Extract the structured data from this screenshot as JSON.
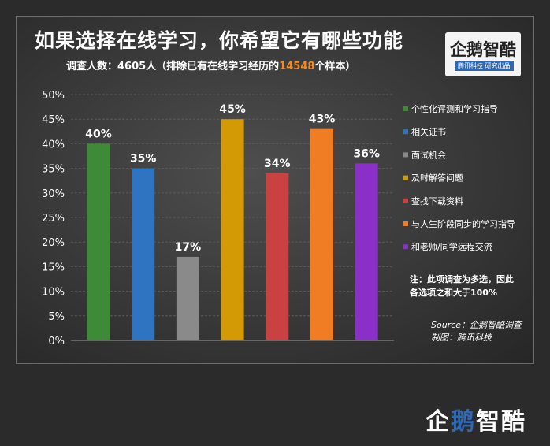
{
  "title": "如果选择在线学习，你希望它有哪些功能",
  "subtitle": {
    "prefix": "调查人数：4605人（排除已有在线学习经历的",
    "highlight": "14548",
    "suffix": "个样本）"
  },
  "brand": {
    "name": "企鹅智酷",
    "tag": "腾讯科技 研究出品"
  },
  "note": "注：此项调查为多选，因此各选项之和大于100%",
  "source": {
    "line1": "Source：企鹅智酷调查",
    "line2": "制图：腾讯科技"
  },
  "footer_logo": {
    "part1": "企",
    "part2": "鹅",
    "part3": "智酷"
  },
  "chart_data": {
    "type": "bar",
    "title": "如果选择在线学习，你希望它有哪些功能",
    "categories": [
      "个性化评测和学习指导",
      "相关证书",
      "面试机会",
      "及时解答问题",
      "查找下载资料",
      "与人生阶段同步的学习指导",
      "和老师/同学远程交流"
    ],
    "values": [
      40,
      35,
      17,
      45,
      34,
      43,
      36
    ],
    "value_labels": [
      "40%",
      "35%",
      "17%",
      "45%",
      "34%",
      "43%",
      "36%"
    ],
    "colors": [
      "#3d8b36",
      "#2f74c0",
      "#8a8a8a",
      "#d49a06",
      "#c94141",
      "#f07d23",
      "#8b2fc9"
    ],
    "ylim": [
      0,
      50
    ],
    "yticks": [
      "0%",
      "5%",
      "10%",
      "15%",
      "20%",
      "25%",
      "30%",
      "35%",
      "40%",
      "45%",
      "50%"
    ],
    "gridlines": true,
    "legend_position": "right"
  }
}
